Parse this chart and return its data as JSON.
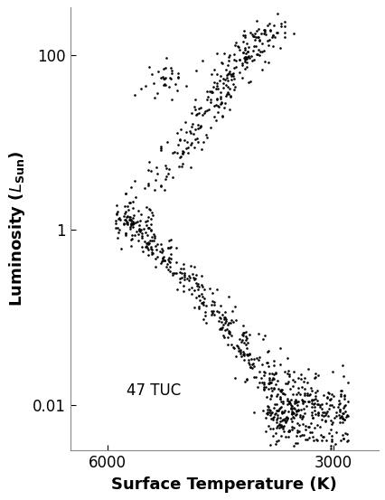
{
  "title": "",
  "xlabel": "Surface Temperature (K)",
  "ylabel": "Luminosity ($L_\\mathregular{Sun}$)",
  "annotation": "47 TUC",
  "annotation_T": 5750,
  "annotation_L": 0.013,
  "xlim": [
    6500,
    2400
  ],
  "ylim": [
    0.003,
    350
  ],
  "xticks": [
    6000,
    3000
  ],
  "yticks": [
    0.01,
    1,
    100
  ],
  "yticklabels": [
    "0.01",
    "1",
    "100"
  ],
  "dot_color": "#000000",
  "dot_size": 3.5,
  "background_color": "#ffffff",
  "seed": 7
}
